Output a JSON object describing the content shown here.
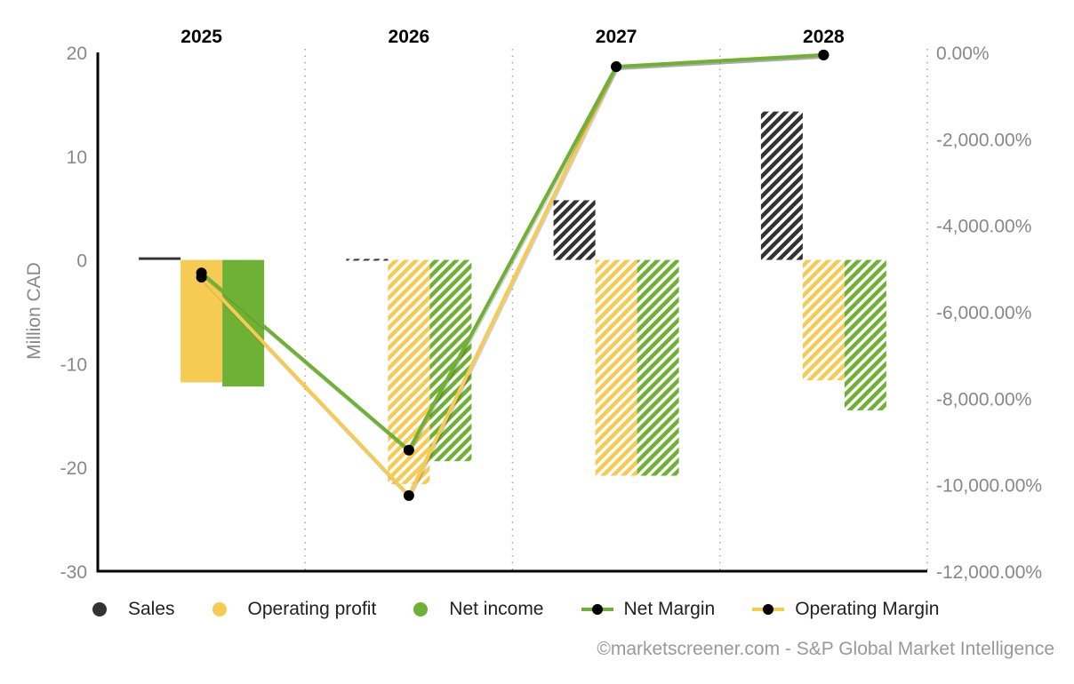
{
  "chart_data": {
    "type": "bar",
    "categories": [
      "2025",
      "2026",
      "2027",
      "2028"
    ],
    "left_axis": {
      "label": "Million CAD",
      "range": [
        -30,
        20
      ],
      "ticks": [
        20,
        10,
        0,
        -10,
        -20,
        -30
      ]
    },
    "right_axis": {
      "range": [
        -12000,
        0
      ],
      "ticks": [
        0,
        -2000,
        -4000,
        -6000,
        -8000,
        -10000,
        -12000
      ],
      "tick_labels": [
        "0.00%",
        "-2,000.00%",
        "-4,000.00%",
        "-6,000.00%",
        "-8,000.00%",
        "-10,000.00%",
        "-12,000.00%"
      ]
    },
    "bar_series": [
      {
        "name": "Sales",
        "color": "#333333",
        "values": [
          0.25,
          0.1,
          5.75,
          14.3
        ],
        "estimate": [
          false,
          true,
          true,
          true
        ]
      },
      {
        "name": "Operating profit",
        "color": "#f5cb53",
        "values": [
          -11.8,
          -21.6,
          -20.8,
          -11.6
        ],
        "estimate": [
          false,
          true,
          true,
          true
        ]
      },
      {
        "name": "Net income",
        "color": "#6fb135",
        "values": [
          -12.2,
          -19.4,
          -20.8,
          -14.5
        ],
        "estimate": [
          false,
          true,
          true,
          true
        ]
      }
    ],
    "line_series": [
      {
        "name": "Net Margin",
        "color": "#6fb135",
        "axis": "right",
        "values": [
          -5100,
          -9200,
          -330,
          -60
        ]
      },
      {
        "name": "Operating Margin",
        "color": "#f5cb53",
        "axis": "right",
        "values": [
          -5200,
          -10250,
          -330,
          -60
        ]
      }
    ],
    "grid": "vertical dotted separators",
    "legend": "bottom"
  },
  "legend": {
    "items": [
      {
        "label": "Sales",
        "type": "dot",
        "color": "#333333"
      },
      {
        "label": "Operating profit",
        "type": "dot",
        "color": "#f5cb53"
      },
      {
        "label": "Net income",
        "type": "dot",
        "color": "#6fb135"
      },
      {
        "label": "Net Margin",
        "type": "line",
        "color": "#6fb135"
      },
      {
        "label": "Operating Margin",
        "type": "line",
        "color": "#f5cb53"
      }
    ]
  },
  "credit": "©marketscreener.com - S&P Global Market Intelligence"
}
